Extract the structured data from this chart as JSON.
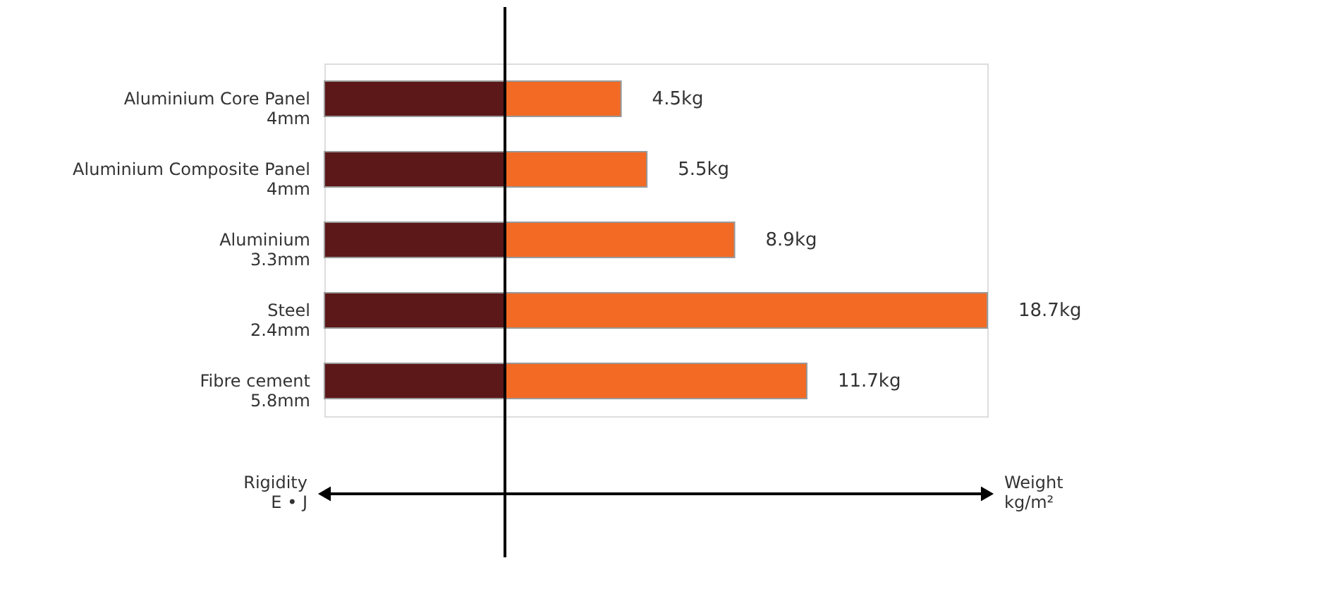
{
  "chart_data": {
    "type": "bar",
    "orientation": "horizontal",
    "stacked": true,
    "categories": [
      "Aluminium Core Panel\n4mm",
      "Aluminium Composite Panel\n4mm",
      "Aluminium\n3.3mm",
      "Steel\n2.4mm",
      "Fibre cement\n5.8mm"
    ],
    "series": [
      {
        "color": "#5c1718",
        "values": [
          -7,
          -7,
          -7,
          -7,
          -7
        ]
      },
      {
        "color": "#f26a24",
        "values": [
          4.5,
          5.5,
          8.9,
          18.7,
          11.7
        ],
        "value_labels": [
          "4.5kg",
          "5.5kg",
          "8.9kg",
          "18.7kg",
          "11.7kg"
        ]
      }
    ],
    "ref_lines": [
      {
        "axis": "x",
        "value": 0
      }
    ],
    "annotations": [
      "Rigidity\nE • J",
      "Weight\nkg/m²"
    ]
  }
}
